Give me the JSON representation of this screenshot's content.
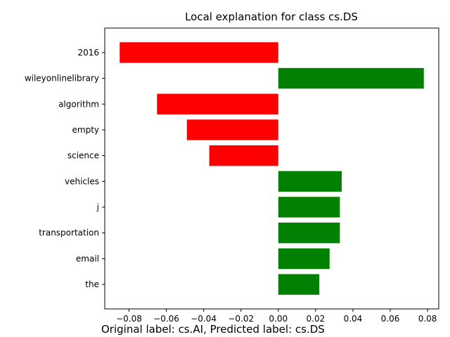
{
  "chart_data": {
    "type": "bar",
    "orientation": "horizontal",
    "title": "Local explanation for class cs.DS",
    "categories": [
      "2016",
      "wileyonlinelibrary",
      "algorithm",
      "empty",
      "science",
      "vehicles",
      "j",
      "transportation",
      "email",
      "the"
    ],
    "values": [
      -0.085,
      0.078,
      -0.065,
      -0.049,
      -0.037,
      0.034,
      0.033,
      0.033,
      0.0275,
      0.022
    ],
    "xlim": [
      -0.093,
      0.086
    ],
    "xticks": [
      -0.08,
      -0.06,
      -0.04,
      -0.02,
      0.0,
      0.02,
      0.04,
      0.06,
      0.08
    ],
    "xtick_labels": [
      "−0.08",
      "−0.06",
      "−0.04",
      "−0.02",
      "0.00",
      "0.02",
      "0.04",
      "0.06",
      "0.08"
    ],
    "colors": {
      "positive": "#008000",
      "negative": "#ff0000"
    },
    "grid": false,
    "legend": "none"
  },
  "caption": "Original label: cs.AI, Predicted label: cs.DS"
}
